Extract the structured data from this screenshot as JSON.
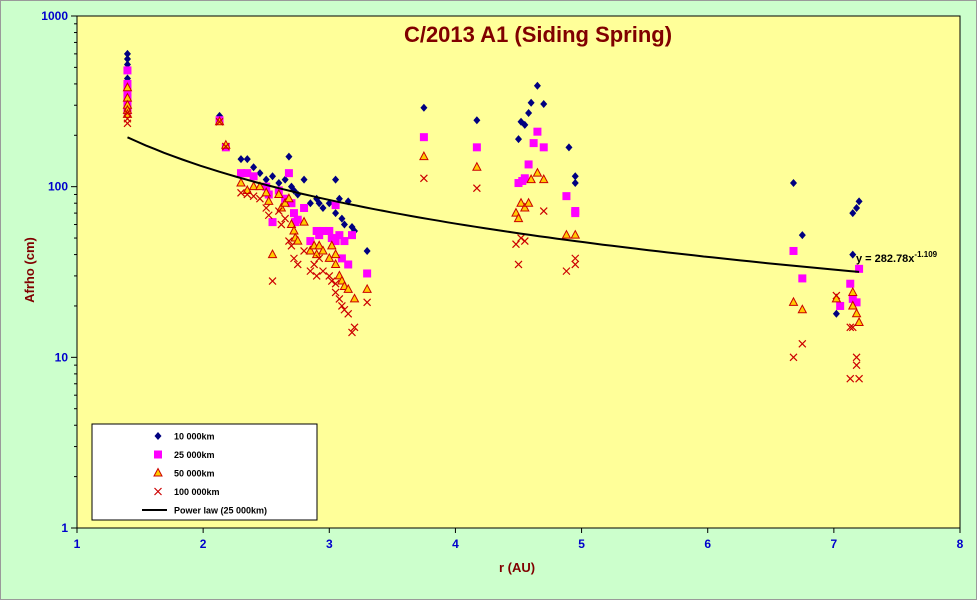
{
  "chart_data": {
    "type": "scatter",
    "title": "C/2013 A1  (Siding Spring)",
    "xlabel": "r (AU)",
    "ylabel": "Afrho (cm)",
    "xlim": [
      1,
      8
    ],
    "ylim": [
      1,
      1000
    ],
    "y_scale": "log",
    "x_ticks": [
      "1",
      "2",
      "3",
      "4",
      "5",
      "6",
      "7",
      "8"
    ],
    "y_ticks": [
      "1",
      "10",
      "100",
      "1000"
    ],
    "grid": false,
    "legend_position": "bottom-left",
    "colors": {
      "plot_bg": "#ffff99",
      "outer_bg": "#ccffcc",
      "s10": "#000080",
      "s25": "#ff00ff",
      "s50_fill": "#ffcc00",
      "s50_stroke": "#cc0000",
      "s100": "#cc0000",
      "fit": "#000000",
      "tick": "#0000cc",
      "title": "#800000"
    },
    "series": [
      {
        "name": "10 000km",
        "marker": "diamond",
        "points": [
          [
            1.4,
            600
          ],
          [
            1.4,
            560
          ],
          [
            1.4,
            520
          ],
          [
            1.4,
            480
          ],
          [
            1.4,
            430
          ],
          [
            1.4,
            390
          ],
          [
            1.4,
            350
          ],
          [
            2.13,
            260
          ],
          [
            2.18,
            175
          ],
          [
            2.3,
            145
          ],
          [
            2.35,
            145
          ],
          [
            2.4,
            130
          ],
          [
            2.45,
            120
          ],
          [
            2.5,
            110
          ],
          [
            2.55,
            115
          ],
          [
            2.6,
            105
          ],
          [
            2.65,
            110
          ],
          [
            2.68,
            150
          ],
          [
            2.7,
            100
          ],
          [
            2.72,
            95
          ],
          [
            2.75,
            90
          ],
          [
            2.8,
            110
          ],
          [
            2.85,
            80
          ],
          [
            2.9,
            85
          ],
          [
            2.92,
            80
          ],
          [
            2.95,
            75
          ],
          [
            3.0,
            80
          ],
          [
            3.05,
            110
          ],
          [
            3.05,
            70
          ],
          [
            3.08,
            85
          ],
          [
            3.1,
            65
          ],
          [
            3.12,
            60
          ],
          [
            3.15,
            82
          ],
          [
            3.18,
            58
          ],
          [
            3.2,
            55
          ],
          [
            3.3,
            42
          ],
          [
            3.75,
            290
          ],
          [
            4.17,
            245
          ],
          [
            4.5,
            190
          ],
          [
            4.52,
            240
          ],
          [
            4.55,
            230
          ],
          [
            4.58,
            270
          ],
          [
            4.6,
            310
          ],
          [
            4.65,
            390
          ],
          [
            4.7,
            305
          ],
          [
            4.9,
            170
          ],
          [
            4.95,
            115
          ],
          [
            4.95,
            105
          ],
          [
            6.68,
            105
          ],
          [
            6.75,
            52
          ],
          [
            7.02,
            18
          ],
          [
            7.15,
            70
          ],
          [
            7.15,
            40
          ],
          [
            7.18,
            75
          ],
          [
            7.2,
            82
          ]
        ]
      },
      {
        "name": "25 000km",
        "marker": "square",
        "points": [
          [
            1.4,
            480
          ],
          [
            1.4,
            400
          ],
          [
            1.4,
            360
          ],
          [
            1.4,
            330
          ],
          [
            1.4,
            300
          ],
          [
            1.4,
            280
          ],
          [
            2.13,
            245
          ],
          [
            2.18,
            170
          ],
          [
            2.3,
            120
          ],
          [
            2.35,
            120
          ],
          [
            2.4,
            115
          ],
          [
            2.5,
            100
          ],
          [
            2.52,
            90
          ],
          [
            2.55,
            62
          ],
          [
            2.6,
            95
          ],
          [
            2.65,
            85
          ],
          [
            2.68,
            120
          ],
          [
            2.7,
            80
          ],
          [
            2.72,
            70
          ],
          [
            2.73,
            62
          ],
          [
            2.75,
            64
          ],
          [
            2.8,
            75
          ],
          [
            2.85,
            48
          ],
          [
            2.9,
            55
          ],
          [
            2.92,
            52
          ],
          [
            2.95,
            55
          ],
          [
            3.0,
            55
          ],
          [
            3.02,
            50
          ],
          [
            3.05,
            78
          ],
          [
            3.05,
            48
          ],
          [
            3.08,
            52
          ],
          [
            3.1,
            38
          ],
          [
            3.12,
            48
          ],
          [
            3.15,
            35
          ],
          [
            3.18,
            52
          ],
          [
            3.3,
            31
          ],
          [
            3.75,
            195
          ],
          [
            4.17,
            170
          ],
          [
            4.5,
            105
          ],
          [
            4.53,
            108
          ],
          [
            4.55,
            112
          ],
          [
            4.58,
            135
          ],
          [
            4.62,
            180
          ],
          [
            4.65,
            210
          ],
          [
            4.7,
            170
          ],
          [
            4.88,
            88
          ],
          [
            4.95,
            72
          ],
          [
            4.95,
            70
          ],
          [
            6.68,
            42
          ],
          [
            6.75,
            29
          ],
          [
            7.05,
            20
          ],
          [
            7.13,
            27
          ],
          [
            7.15,
            22
          ],
          [
            7.18,
            21
          ],
          [
            7.2,
            33
          ]
        ]
      },
      {
        "name": "50 000km",
        "marker": "triangle",
        "points": [
          [
            1.4,
            380
          ],
          [
            1.4,
            330
          ],
          [
            1.4,
            300
          ],
          [
            1.4,
            280
          ],
          [
            1.4,
            265
          ],
          [
            2.13,
            240
          ],
          [
            2.18,
            175
          ],
          [
            2.3,
            105
          ],
          [
            2.35,
            95
          ],
          [
            2.4,
            100
          ],
          [
            2.45,
            100
          ],
          [
            2.5,
            92
          ],
          [
            2.52,
            82
          ],
          [
            2.55,
            40
          ],
          [
            2.6,
            90
          ],
          [
            2.62,
            75
          ],
          [
            2.65,
            80
          ],
          [
            2.68,
            85
          ],
          [
            2.7,
            60
          ],
          [
            2.72,
            55
          ],
          [
            2.73,
            50
          ],
          [
            2.75,
            48
          ],
          [
            2.8,
            62
          ],
          [
            2.85,
            42
          ],
          [
            2.88,
            45
          ],
          [
            2.9,
            40
          ],
          [
            2.92,
            45
          ],
          [
            2.95,
            42
          ],
          [
            3.0,
            38
          ],
          [
            3.02,
            45
          ],
          [
            3.05,
            40
          ],
          [
            3.05,
            35
          ],
          [
            3.08,
            30
          ],
          [
            3.1,
            28
          ],
          [
            3.12,
            26
          ],
          [
            3.15,
            25
          ],
          [
            3.2,
            22
          ],
          [
            3.3,
            25
          ],
          [
            3.75,
            150
          ],
          [
            4.17,
            130
          ],
          [
            4.48,
            70
          ],
          [
            4.5,
            65
          ],
          [
            4.52,
            80
          ],
          [
            4.55,
            75
          ],
          [
            4.58,
            80
          ],
          [
            4.6,
            110
          ],
          [
            4.65,
            120
          ],
          [
            4.7,
            110
          ],
          [
            4.88,
            52
          ],
          [
            4.95,
            52
          ],
          [
            6.68,
            21
          ],
          [
            6.75,
            19
          ],
          [
            7.02,
            22
          ],
          [
            7.15,
            24
          ],
          [
            7.15,
            20
          ],
          [
            7.18,
            18
          ],
          [
            7.2,
            16
          ]
        ]
      },
      {
        "name": "100 000km",
        "marker": "cross",
        "points": [
          [
            1.4,
            270
          ],
          [
            1.4,
            250
          ],
          [
            1.4,
            235
          ],
          [
            2.13,
            240
          ],
          [
            2.18,
            172
          ],
          [
            2.3,
            92
          ],
          [
            2.35,
            90
          ],
          [
            2.4,
            88
          ],
          [
            2.45,
            85
          ],
          [
            2.5,
            75
          ],
          [
            2.52,
            68
          ],
          [
            2.55,
            28
          ],
          [
            2.6,
            72
          ],
          [
            2.62,
            60
          ],
          [
            2.65,
            65
          ],
          [
            2.68,
            48
          ],
          [
            2.7,
            45
          ],
          [
            2.72,
            38
          ],
          [
            2.75,
            35
          ],
          [
            2.8,
            42
          ],
          [
            2.85,
            32
          ],
          [
            2.88,
            35
          ],
          [
            2.9,
            30
          ],
          [
            2.92,
            38
          ],
          [
            2.95,
            32
          ],
          [
            3.0,
            30
          ],
          [
            3.02,
            28
          ],
          [
            3.05,
            27
          ],
          [
            3.05,
            24
          ],
          [
            3.08,
            22
          ],
          [
            3.1,
            20
          ],
          [
            3.12,
            19
          ],
          [
            3.15,
            18
          ],
          [
            3.18,
            14
          ],
          [
            3.2,
            15
          ],
          [
            3.3,
            21
          ],
          [
            3.75,
            112
          ],
          [
            4.17,
            98
          ],
          [
            4.48,
            46
          ],
          [
            4.5,
            35
          ],
          [
            4.52,
            50
          ],
          [
            4.55,
            48
          ],
          [
            4.7,
            72
          ],
          [
            4.88,
            32
          ],
          [
            4.95,
            38
          ],
          [
            4.95,
            35
          ],
          [
            6.68,
            10
          ],
          [
            6.75,
            12
          ],
          [
            7.02,
            23
          ],
          [
            7.13,
            15
          ],
          [
            7.13,
            7.5
          ],
          [
            7.15,
            15
          ],
          [
            7.18,
            10
          ],
          [
            7.18,
            9
          ],
          [
            7.2,
            7.5
          ]
        ]
      }
    ],
    "fit": {
      "name": "Power law (25 000km)",
      "coefficient": 282.78,
      "exponent": -1.109,
      "x_range": [
        1.4,
        7.2
      ],
      "label": "y = 282.78x",
      "label_exponent": "-1.109"
    }
  }
}
